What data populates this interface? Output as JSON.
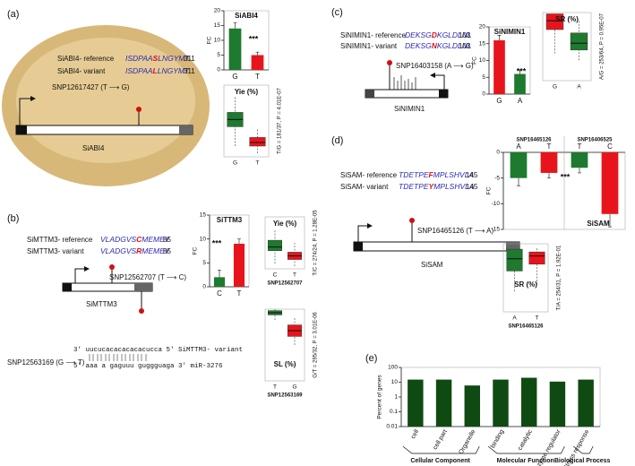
{
  "panels": {
    "a": {
      "label": "(a)",
      "ref_name": "SiABI4- reference",
      "ref_seq": [
        "ISDPAA",
        "S",
        "LNGYMT"
      ],
      "ref_len": "311",
      "var_name": "SiABI4- variant",
      "var_seq": [
        "ISDPAA",
        "L",
        "LNGYMT"
      ],
      "var_len": "311",
      "snp": "SNP12617427 (T ⟶ G)",
      "gene": "SiABI4"
    },
    "b": {
      "label": "(b)",
      "ref_name": "SiMTTM3- reference",
      "ref_seq": [
        "VLADGVS",
        "C",
        "MEMEY"
      ],
      "ref_len": "85",
      "var_name": "SiMTTM3- variant",
      "var_seq": [
        "VLADGVS",
        "R",
        "MEMEY"
      ],
      "var_len": "85",
      "snp": "SNP12562707 (T ⟶ C)",
      "gene": "SiMTTM3",
      "mirna_snp": "SNP12563169 (G ⟶ T)",
      "target": "3' uucucacacacacacucca 5' SiMTTM3- variant",
      "mirna": "5' aaa a gaguuu guggguaga 3' miR-3276"
    },
    "c": {
      "label": "(c)",
      "ref_name": "SiNIMIN1- reference",
      "ref_seq": [
        "DEKSG",
        "D",
        "KGLDLNL"
      ],
      "ref_len": "103",
      "var_name": "SiNIMIN1- variant",
      "var_seq": [
        "DEKSG",
        "N",
        "KGLDLNL"
      ],
      "var_len": "103",
      "snp": "SNP16403158 (A ⟶ G)",
      "gene": "SiNIMIN1"
    },
    "d": {
      "label": "(d)",
      "ref_name": "SiSAM- reference",
      "ref_seq": [
        "TDETPE",
        "F",
        "MPLSHVLA"
      ],
      "ref_len": "145",
      "var_name": "SiSAM- variant",
      "var_seq": [
        "TDETPE",
        "Y",
        "MPLSHVLA"
      ],
      "var_len": "145",
      "snp": "SNP16465126 (T ⟶ A)",
      "gene": "SiSAM"
    },
    "e": {
      "label": "(e)"
    }
  },
  "chart_data": [
    {
      "type": "bar",
      "title": "SiABI4",
      "y_label": "FC",
      "categories": [
        "G",
        "T"
      ],
      "values": [
        14,
        5
      ],
      "errors": [
        2,
        1
      ],
      "colors": [
        "#1e7a2e",
        "#e8141c"
      ],
      "ylim": [
        0,
        20
      ],
      "yticks": [
        0,
        5,
        10,
        15,
        20
      ],
      "annotation": "***"
    },
    {
      "type": "box",
      "title": "Yie (%)",
      "categories": [
        "G",
        "T"
      ],
      "min": [
        15,
        5
      ],
      "q1": [
        42,
        15
      ],
      "median": [
        52,
        20
      ],
      "q3": [
        62,
        27
      ],
      "max": [
        85,
        40
      ],
      "colors": [
        "#1e7a2e",
        "#e8141c"
      ],
      "ylim": [
        0,
        100
      ],
      "side_label": "T/G = 181/37, P = 4.01E-07"
    },
    {
      "type": "bar",
      "title": "SiTTM3",
      "y_label": "FC",
      "categories": [
        "C",
        "T"
      ],
      "values": [
        2,
        9
      ],
      "errors": [
        1.5,
        1
      ],
      "colors": [
        "#1e7a2e",
        "#e8141c"
      ],
      "ylim": [
        0,
        15
      ],
      "yticks": [
        0,
        5,
        10,
        15
      ],
      "annotation": "***"
    },
    {
      "type": "box",
      "title": "Yie (%)",
      "x_label": "SNP12562707",
      "categories": [
        "C",
        "T"
      ],
      "min": [
        10,
        5
      ],
      "q1": [
        35,
        18
      ],
      "median": [
        42,
        25
      ],
      "q3": [
        55,
        32
      ],
      "max": [
        75,
        50
      ],
      "colors": [
        "#1e7a2e",
        "#e8141c"
      ],
      "ylim": [
        0,
        100
      ],
      "side_label": "T/C = 274/24, P = 1.28E-05"
    },
    {
      "type": "box",
      "title": "SL (%)",
      "x_label": "SNP12563169",
      "categories": [
        "T",
        "G"
      ],
      "min": [
        85,
        50
      ],
      "q1": [
        92,
        62
      ],
      "median": [
        95,
        70
      ],
      "q3": [
        98,
        78
      ],
      "max": [
        100,
        88
      ],
      "colors": [
        "#1e7a2e",
        "#e8141c"
      ],
      "ylim": [
        0,
        100
      ],
      "side_label": "G/T = 295/32, P = 3.01E-06"
    },
    {
      "type": "bar",
      "title": "SiNIMIN1",
      "y_label": "FC",
      "categories": [
        "G",
        "A"
      ],
      "values": [
        16,
        6
      ],
      "errors": [
        1.5,
        1
      ],
      "colors": [
        "#e8141c",
        "#1e7a2e"
      ],
      "ylim": [
        0,
        20
      ],
      "yticks": [
        0,
        5,
        10,
        15,
        20
      ],
      "annotation": "***"
    },
    {
      "type": "box",
      "title": "SR (%)",
      "categories": [
        "G",
        "A"
      ],
      "min": [
        40,
        30
      ],
      "q1": [
        75,
        45
      ],
      "median": [
        88,
        55
      ],
      "q3": [
        98,
        70
      ],
      "max": [
        100,
        90
      ],
      "colors": [
        "#e8141c",
        "#1e7a2e"
      ],
      "ylim": [
        0,
        100
      ],
      "side_label": "A/G = 253/64, P = 0.95E-07"
    },
    {
      "type": "bar",
      "title": "SiSAM",
      "y_label": "FC",
      "groups": [
        {
          "name": "SNP16465126",
          "categories": [
            "A",
            "T"
          ],
          "values": [
            -5,
            -4
          ],
          "errors": [
            1.5,
            1
          ],
          "colors": [
            "#1e7a2e",
            "#e8141c"
          ]
        },
        {
          "name": "SNP16406525",
          "categories": [
            "T",
            "C"
          ],
          "values": [
            -3,
            -12
          ],
          "errors": [
            1,
            2.5
          ],
          "colors": [
            "#1e7a2e",
            "#e8141c"
          ]
        }
      ],
      "ylim": [
        -15,
        0
      ],
      "yticks": [
        0,
        -5,
        -10,
        -15
      ],
      "annotation": "***"
    },
    {
      "type": "box",
      "title": "SR (%)",
      "x_label": "SNP16465126",
      "categories": [
        "A",
        "T"
      ],
      "min": [
        30,
        40
      ],
      "q1": [
        60,
        70
      ],
      "median": [
        78,
        82
      ],
      "q3": [
        92,
        88
      ],
      "max": [
        100,
        95
      ],
      "colors": [
        "#1e7a2e",
        "#e8141c"
      ],
      "ylim": [
        0,
        100
      ],
      "side_label": "T/A = 254/31, P = 1.92E-01"
    },
    {
      "type": "bar",
      "y_label": "Percent of genes",
      "log_scale": true,
      "color": "#0f4a12",
      "groups": [
        {
          "name": "Cellular Component",
          "categories": [
            "cell",
            "cell part",
            "Organelle"
          ],
          "values": [
            15,
            15,
            6
          ]
        },
        {
          "name": "Molecular Function",
          "categories": [
            "binding",
            "catalytic",
            "Enzyme regulator"
          ],
          "values": [
            15,
            20,
            11
          ]
        },
        {
          "name": "Biological Process",
          "categories": [
            "Stress response"
          ],
          "values": [
            15
          ]
        }
      ],
      "ylim": [
        0.01,
        100
      ],
      "yticks": [
        0.01,
        0.1,
        1,
        10,
        100
      ]
    }
  ]
}
